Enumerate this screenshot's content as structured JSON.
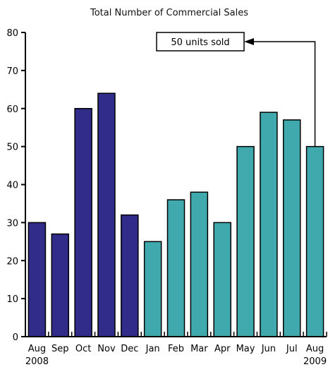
{
  "chart_data": {
    "type": "bar",
    "title": "Total Number of Commercial Sales",
    "categories": [
      "Aug",
      "Sep",
      "Oct",
      "Nov",
      "Dec",
      "Jan",
      "Feb",
      "Mar",
      "Apr",
      "May",
      "Jun",
      "Jul",
      "Aug"
    ],
    "years": [
      {
        "label": "2008",
        "category_index": 0
      },
      {
        "label": "2009",
        "category_index": 12
      }
    ],
    "values": [
      30,
      27,
      60,
      64,
      32,
      25,
      36,
      38,
      30,
      50,
      59,
      57,
      50
    ],
    "period_colors": [
      "#312b8a",
      "#312b8a",
      "#312b8a",
      "#312b8a",
      "#312b8a",
      "#3fa9ae",
      "#3fa9ae",
      "#3fa9ae",
      "#3fa9ae",
      "#3fa9ae",
      "#3fa9ae",
      "#3fa9ae",
      "#3fa9ae"
    ],
    "ylim": [
      0,
      80
    ],
    "yticks": [
      0,
      10,
      20,
      30,
      40,
      50,
      60,
      70,
      80
    ],
    "grid": false,
    "xlabel": "",
    "ylabel": "",
    "annotation": {
      "text": "50 units sold",
      "target_category_index": 12
    }
  }
}
